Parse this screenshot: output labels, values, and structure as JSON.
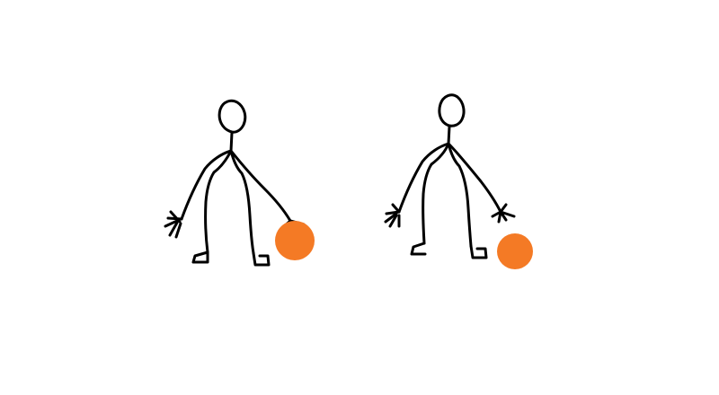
{
  "scene": {
    "figure_count": 2,
    "ball_color": "#F47A25",
    "line_color": "#000000",
    "background_color": "#FFFFFF"
  },
  "figures": [
    {
      "name": "stick-figure-1",
      "holding_ball": true
    },
    {
      "name": "stick-figure-2",
      "holding_ball": false
    }
  ]
}
